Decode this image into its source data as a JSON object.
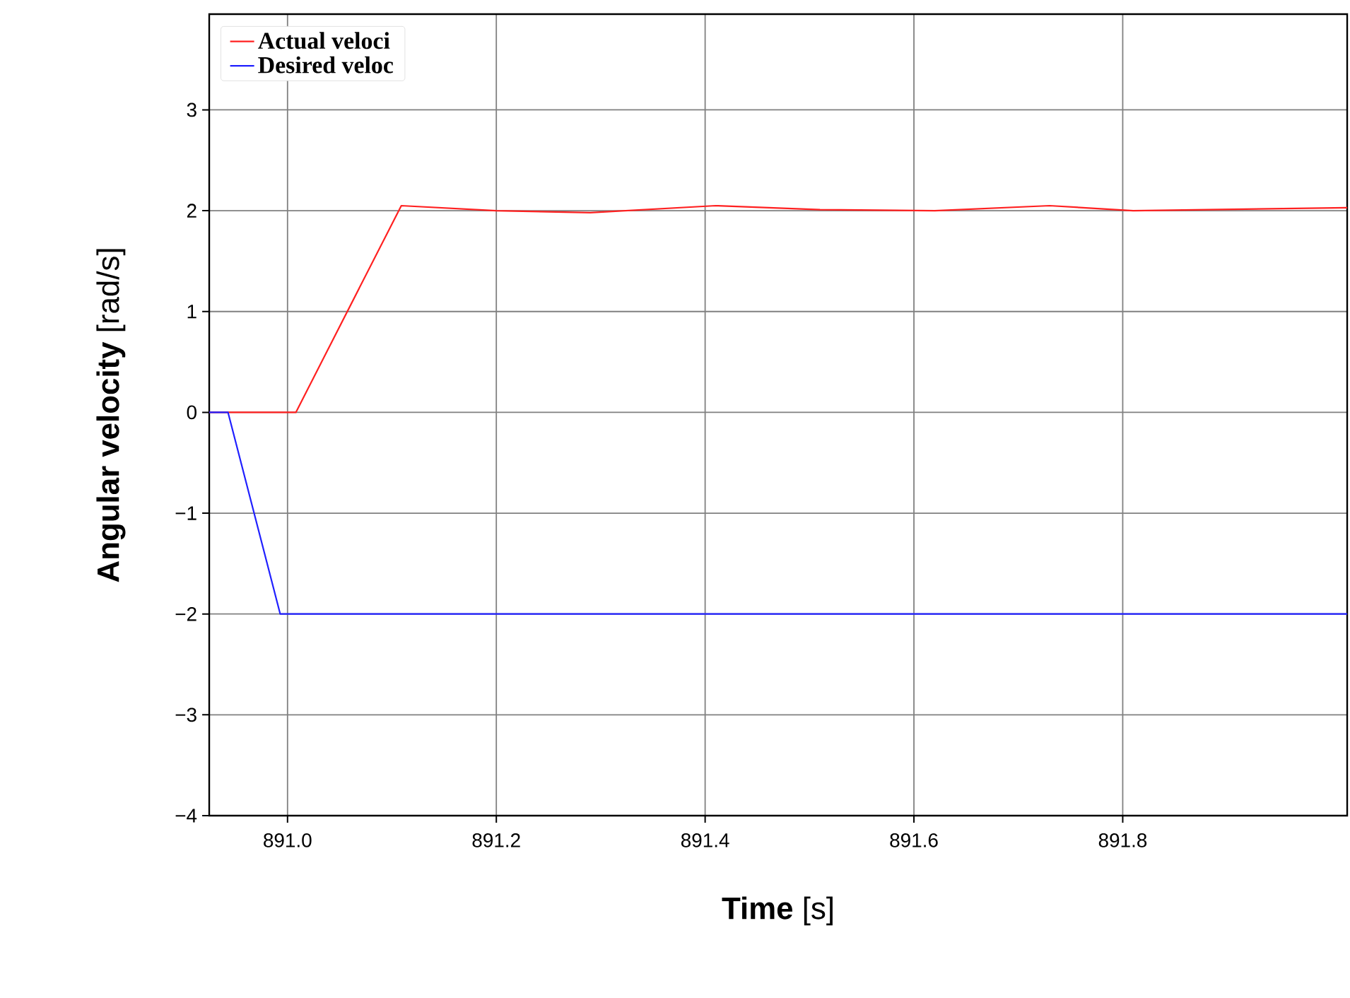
{
  "chart_data": {
    "type": "line",
    "xlabel": "**Time** [s]",
    "ylabel": "**Angular velocity**  [rad/s]",
    "xlim": [
      890.925,
      892.015
    ],
    "ylim": [
      -4,
      3.95
    ],
    "xticks": [
      {
        "value": 891.0,
        "label": "891.0"
      },
      {
        "value": 891.2,
        "label": "891.2"
      },
      {
        "value": 891.4,
        "label": "891.4"
      },
      {
        "value": 891.6,
        "label": "891.6"
      },
      {
        "value": 891.8,
        "label": "891.8"
      }
    ],
    "yticks": [
      {
        "value": -4,
        "label": "−4"
      },
      {
        "value": -3,
        "label": "−3"
      },
      {
        "value": -2,
        "label": "−2"
      },
      {
        "value": -1,
        "label": "−1"
      },
      {
        "value": 0,
        "label": "0"
      },
      {
        "value": 1,
        "label": "1"
      },
      {
        "value": 2,
        "label": "2"
      },
      {
        "value": 3,
        "label": "3"
      }
    ],
    "grid": true,
    "legend": "top left",
    "series": [
      {
        "name": "Actual veloci",
        "color": "#ff2020",
        "x": [
          890.925,
          891.008,
          891.109,
          891.2,
          891.29,
          891.41,
          891.51,
          891.62,
          891.73,
          891.81,
          892.015
        ],
        "values": [
          0,
          0,
          2.05,
          2.0,
          1.98,
          2.05,
          2.01,
          2.0,
          2.05,
          2.0,
          2.03
        ]
      },
      {
        "name": "Desired veloc",
        "color": "#2020ff",
        "x": [
          890.925,
          890.943,
          890.993,
          892.015
        ],
        "values": [
          0,
          0,
          -2,
          -2
        ]
      }
    ]
  }
}
